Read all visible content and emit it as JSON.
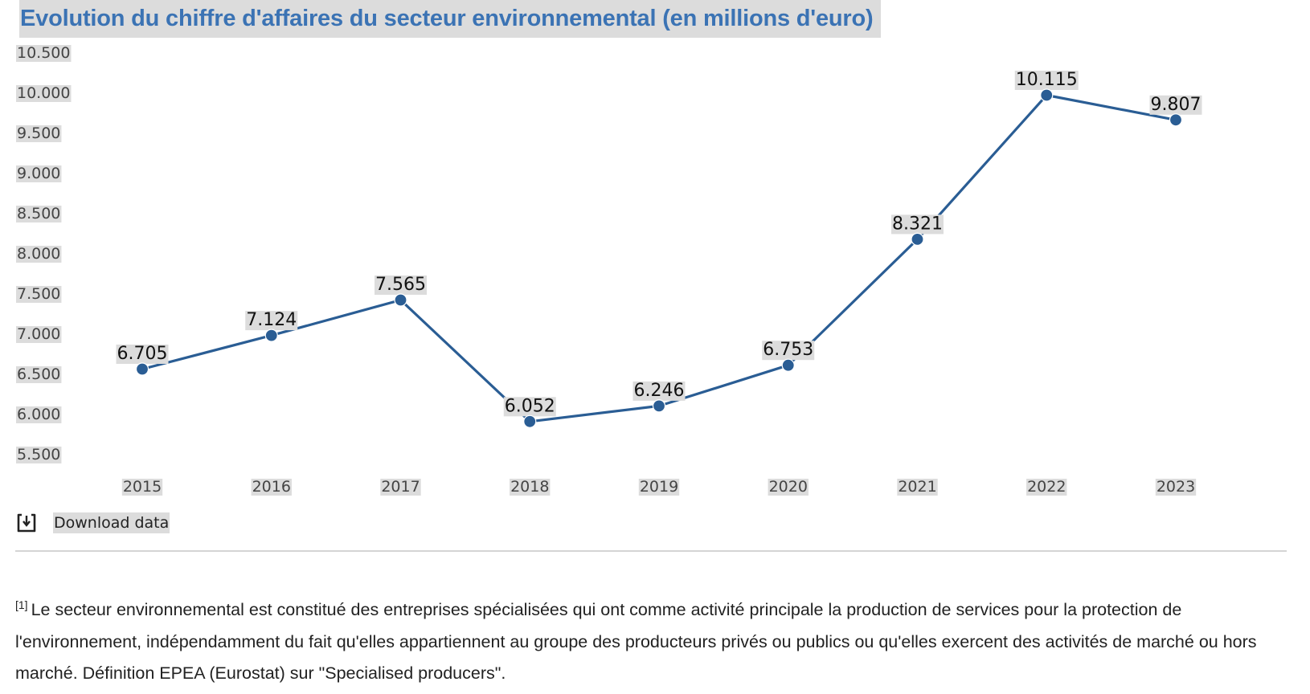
{
  "title": "Evolution du chiffre d'affaires du secteur environnemental (en millions d'euro)",
  "chart_data": {
    "type": "line",
    "title": "Evolution du chiffre d'affaires du secteur environnemental (en millions d'euro)",
    "xlabel": "",
    "ylabel": "",
    "categories": [
      "2015",
      "2016",
      "2017",
      "2018",
      "2019",
      "2020",
      "2021",
      "2022",
      "2023"
    ],
    "series": [
      {
        "name": "Chiffre d'affaires",
        "values": [
          6705,
          7124,
          7565,
          6052,
          6246,
          6753,
          8321,
          10115,
          9807
        ],
        "value_labels": [
          "6.705",
          "7.124",
          "7.565",
          "6.052",
          "6.246",
          "6.753",
          "8.321",
          "10.115",
          "9.807"
        ],
        "color": "#2a5d94"
      }
    ],
    "ylim": [
      5500,
      10500
    ],
    "yticks": [
      10500,
      10000,
      9500,
      9000,
      8500,
      8000,
      7500,
      7000,
      6500,
      6000,
      5500
    ],
    "ytick_labels": [
      "10.500",
      "10.000",
      "9.500",
      "9.000",
      "8.500",
      "8.000",
      "7.500",
      "7.000",
      "6.500",
      "6.000",
      "5.500"
    ],
    "grid": false,
    "legend": "none"
  },
  "download": {
    "icon": "download-icon",
    "label": "Download data"
  },
  "footnote": {
    "marker": "[1]",
    "text": "Le secteur environnemental est constitué des entreprises spécialisées qui ont comme activité principale la production de services pour la protection de l'environnement, indépendamment du fait qu'elles appartiennent au groupe des producteurs privés ou publics ou qu'elles exercent des activités de marché ou hors marché. Définition EPEA (Eurostat) sur \"Specialised producers\"."
  },
  "colors": {
    "title": "#3b73b4",
    "line": "#2a5d94",
    "label_bg": "#dcdcdc"
  }
}
